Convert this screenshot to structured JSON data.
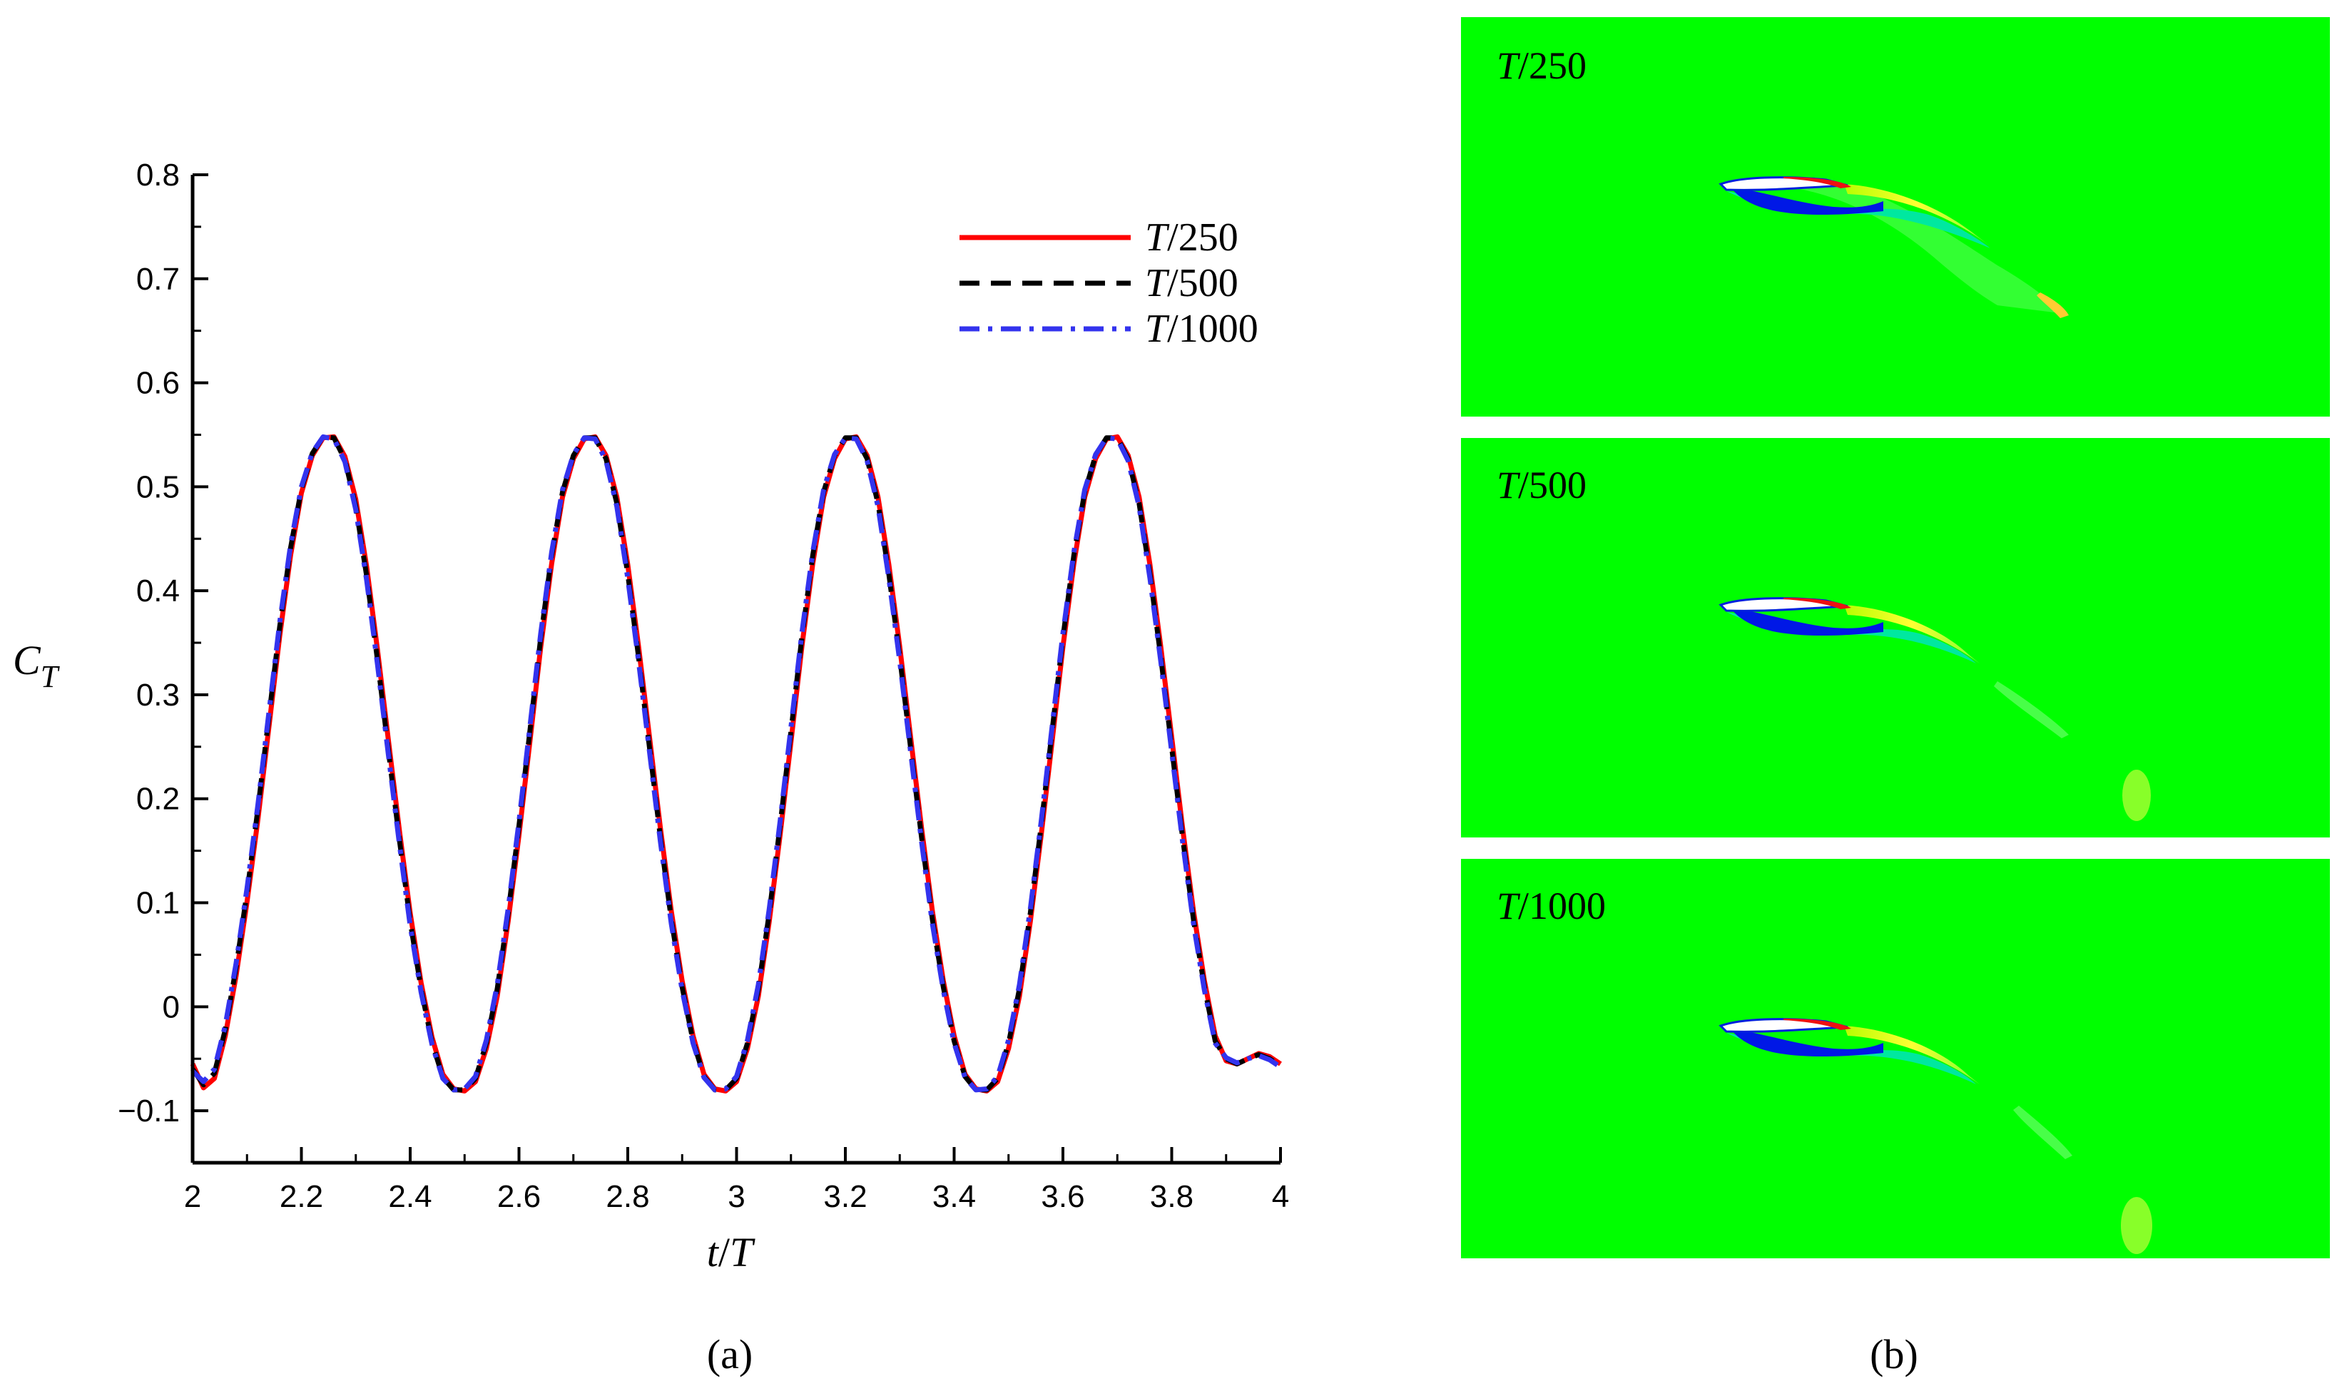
{
  "captions": {
    "a": "(a)",
    "b": "(b)"
  },
  "chart_data": {
    "type": "line",
    "title": "",
    "xlabel": "t/T",
    "ylabel": "C_T",
    "xlim": [
      2,
      4
    ],
    "ylim": [
      -0.15,
      0.8
    ],
    "xticks": [
      2,
      2.2,
      2.4,
      2.6,
      2.8,
      3,
      3.2,
      3.4,
      3.6,
      3.8,
      4
    ],
    "xtick_labels": [
      "2",
      "2.2",
      "2.4",
      "2.6",
      "2.8",
      "3",
      "3.2",
      "3.4",
      "3.6",
      "3.8",
      "4"
    ],
    "yticks": [
      -0.1,
      0,
      0.1,
      0.2,
      0.3,
      0.4,
      0.5,
      0.6,
      0.7,
      0.8
    ],
    "ytick_labels": [
      "−0.1",
      "0",
      "0.1",
      "0.2",
      "0.3",
      "0.4",
      "0.5",
      "0.6",
      "0.7",
      "0.8"
    ],
    "grid": false,
    "legend": "top-right",
    "x": [
      2.0,
      2.02,
      2.04,
      2.06,
      2.08,
      2.1,
      2.12,
      2.14,
      2.16,
      2.18,
      2.2,
      2.22,
      2.24,
      2.26,
      2.28,
      2.3,
      2.32,
      2.34,
      2.36,
      2.38,
      2.4,
      2.42,
      2.44,
      2.46,
      2.48,
      2.5,
      2.52,
      2.54,
      2.56,
      2.58,
      2.6,
      2.62,
      2.64,
      2.66,
      2.68,
      2.7,
      2.72,
      2.74,
      2.76,
      2.78,
      2.8,
      2.82,
      2.84,
      2.86,
      2.88,
      2.9,
      2.92,
      2.94,
      2.96,
      2.98,
      3.0,
      3.02,
      3.04,
      3.06,
      3.08,
      3.1,
      3.12,
      3.14,
      3.16,
      3.18,
      3.2,
      3.22,
      3.24,
      3.26,
      3.28,
      3.3,
      3.32,
      3.34,
      3.36,
      3.38,
      3.4,
      3.42,
      3.44,
      3.46,
      3.48,
      3.5,
      3.52,
      3.54,
      3.56,
      3.58,
      3.6,
      3.62,
      3.64,
      3.66,
      3.68,
      3.7,
      3.72,
      3.74,
      3.76,
      3.78,
      3.8,
      3.82,
      3.84,
      3.86,
      3.88,
      3.9,
      3.92,
      3.94,
      3.96,
      3.98,
      4.0
    ],
    "series": [
      {
        "name": "T/250",
        "color": "#ff0000",
        "dash": "solid",
        "values": [
          -0.055,
          -0.078,
          -0.069,
          -0.028,
          0.03,
          0.101,
          0.18,
          0.268,
          0.356,
          0.434,
          0.494,
          0.53,
          0.547,
          0.548,
          0.529,
          0.488,
          0.423,
          0.343,
          0.256,
          0.17,
          0.09,
          0.023,
          -0.029,
          -0.065,
          -0.079,
          -0.081,
          -0.072,
          -0.04,
          0.01,
          0.082,
          0.165,
          0.255,
          0.346,
          0.426,
          0.49,
          0.527,
          0.546,
          0.548,
          0.53,
          0.49,
          0.425,
          0.346,
          0.259,
          0.172,
          0.092,
          0.025,
          -0.028,
          -0.065,
          -0.079,
          -0.081,
          -0.072,
          -0.04,
          0.01,
          0.082,
          0.165,
          0.255,
          0.346,
          0.426,
          0.49,
          0.527,
          0.546,
          0.548,
          0.53,
          0.49,
          0.425,
          0.346,
          0.259,
          0.172,
          0.092,
          0.025,
          -0.028,
          -0.065,
          -0.079,
          -0.081,
          -0.072,
          -0.04,
          0.01,
          0.082,
          0.165,
          0.255,
          0.346,
          0.426,
          0.49,
          0.527,
          0.546,
          0.548,
          0.53,
          0.49,
          0.425,
          0.346,
          0.259,
          0.172,
          0.092,
          0.025,
          -0.028,
          -0.052,
          -0.055,
          -0.05,
          -0.045,
          -0.048,
          -0.055
        ]
      },
      {
        "name": "T/500",
        "color": "#000000",
        "dash": "dashed",
        "values": [
          -0.06,
          -0.075,
          -0.064,
          -0.022,
          0.038,
          0.11,
          0.19,
          0.278,
          0.365,
          0.441,
          0.498,
          0.532,
          0.548,
          0.547,
          0.526,
          0.481,
          0.414,
          0.333,
          0.246,
          0.161,
          0.082,
          0.017,
          -0.034,
          -0.068,
          -0.08,
          -0.08,
          -0.069,
          -0.035,
          0.017,
          0.09,
          0.174,
          0.265,
          0.355,
          0.434,
          0.495,
          0.53,
          0.547,
          0.547,
          0.527,
          0.484,
          0.416,
          0.336,
          0.249,
          0.163,
          0.084,
          0.019,
          -0.033,
          -0.067,
          -0.08,
          -0.08,
          -0.069,
          -0.035,
          0.017,
          0.09,
          0.174,
          0.265,
          0.355,
          0.434,
          0.495,
          0.53,
          0.547,
          0.547,
          0.527,
          0.484,
          0.416,
          0.336,
          0.249,
          0.163,
          0.084,
          0.019,
          -0.033,
          -0.067,
          -0.08,
          -0.08,
          -0.069,
          -0.035,
          0.017,
          0.09,
          0.174,
          0.265,
          0.355,
          0.434,
          0.495,
          0.53,
          0.547,
          0.547,
          0.527,
          0.484,
          0.416,
          0.336,
          0.249,
          0.163,
          0.084,
          0.019,
          -0.033,
          -0.05,
          -0.055,
          -0.05,
          -0.046,
          -0.05,
          -0.057
        ]
      },
      {
        "name": "T/1000",
        "color": "#3333ee",
        "dash": "dashdot",
        "values": [
          -0.062,
          -0.072,
          -0.06,
          -0.018,
          0.042,
          0.114,
          0.194,
          0.282,
          0.369,
          0.444,
          0.5,
          0.533,
          0.548,
          0.546,
          0.524,
          0.478,
          0.41,
          0.329,
          0.242,
          0.157,
          0.078,
          0.014,
          -0.036,
          -0.069,
          -0.08,
          -0.079,
          -0.067,
          -0.032,
          0.021,
          0.094,
          0.178,
          0.269,
          0.359,
          0.437,
          0.497,
          0.531,
          0.547,
          0.546,
          0.525,
          0.481,
          0.412,
          0.332,
          0.245,
          0.159,
          0.08,
          0.016,
          -0.035,
          -0.068,
          -0.08,
          -0.079,
          -0.067,
          -0.032,
          0.021,
          0.094,
          0.178,
          0.269,
          0.359,
          0.437,
          0.497,
          0.531,
          0.547,
          0.546,
          0.525,
          0.481,
          0.412,
          0.332,
          0.245,
          0.159,
          0.08,
          0.016,
          -0.035,
          -0.068,
          -0.08,
          -0.079,
          -0.067,
          -0.032,
          0.021,
          0.094,
          0.178,
          0.269,
          0.359,
          0.437,
          0.497,
          0.531,
          0.547,
          0.546,
          0.525,
          0.481,
          0.412,
          0.332,
          0.245,
          0.159,
          0.08,
          0.016,
          -0.035,
          -0.049,
          -0.054,
          -0.05,
          -0.047,
          -0.051,
          -0.058
        ]
      }
    ]
  },
  "contour_panels": [
    {
      "label": "T/250",
      "background": "#00ff00"
    },
    {
      "label": "T/500",
      "background": "#00ff00"
    },
    {
      "label": "T/1000",
      "background": "#00ff00"
    }
  ]
}
